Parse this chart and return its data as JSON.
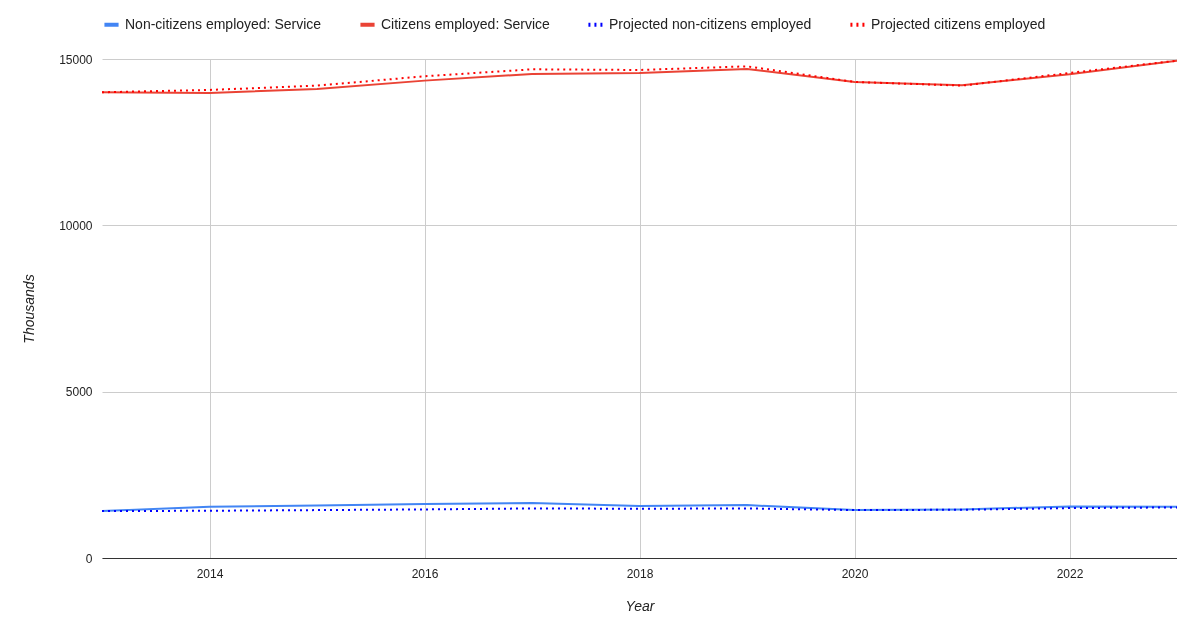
{
  "chart_data": {
    "type": "line",
    "xlabel": "Year",
    "ylabel": "Thousands",
    "x": [
      2013,
      2014,
      2015,
      2016,
      2017,
      2018,
      2019,
      2020,
      2021,
      2022,
      2023
    ],
    "series": [
      {
        "name": "Non-citizens employed: Service",
        "color": "#4285f4",
        "line_style": "solid",
        "values": [
          1410,
          1540,
          1580,
          1620,
          1650,
          1560,
          1590,
          1440,
          1460,
          1550,
          1540
        ]
      },
      {
        "name": "Citizens employed: Service",
        "color": "#ea4335",
        "line_style": "solid",
        "values": [
          14000,
          13980,
          14100,
          14350,
          14550,
          14580,
          14700,
          14310,
          14210,
          14540,
          14950
        ]
      },
      {
        "name": "Projected non-citizens employed",
        "color": "#0000ff",
        "line_style": "dotted",
        "values": [
          1410,
          1420,
          1440,
          1460,
          1490,
          1480,
          1490,
          1440,
          1450,
          1500,
          1520
        ]
      },
      {
        "name": "Projected citizens employed",
        "color": "#ff0000",
        "line_style": "dotted",
        "values": [
          14000,
          14070,
          14200,
          14480,
          14690,
          14670,
          14780,
          14310,
          14200,
          14580,
          14950
        ]
      }
    ],
    "xlim": [
      2013,
      2023
    ],
    "xticks": [
      2014,
      2016,
      2018,
      2020,
      2022
    ],
    "ylim": [
      0,
      15000
    ],
    "yticks": [
      0,
      5000,
      10000,
      15000
    ],
    "grid": true,
    "legend": "top",
    "marker": "none"
  }
}
